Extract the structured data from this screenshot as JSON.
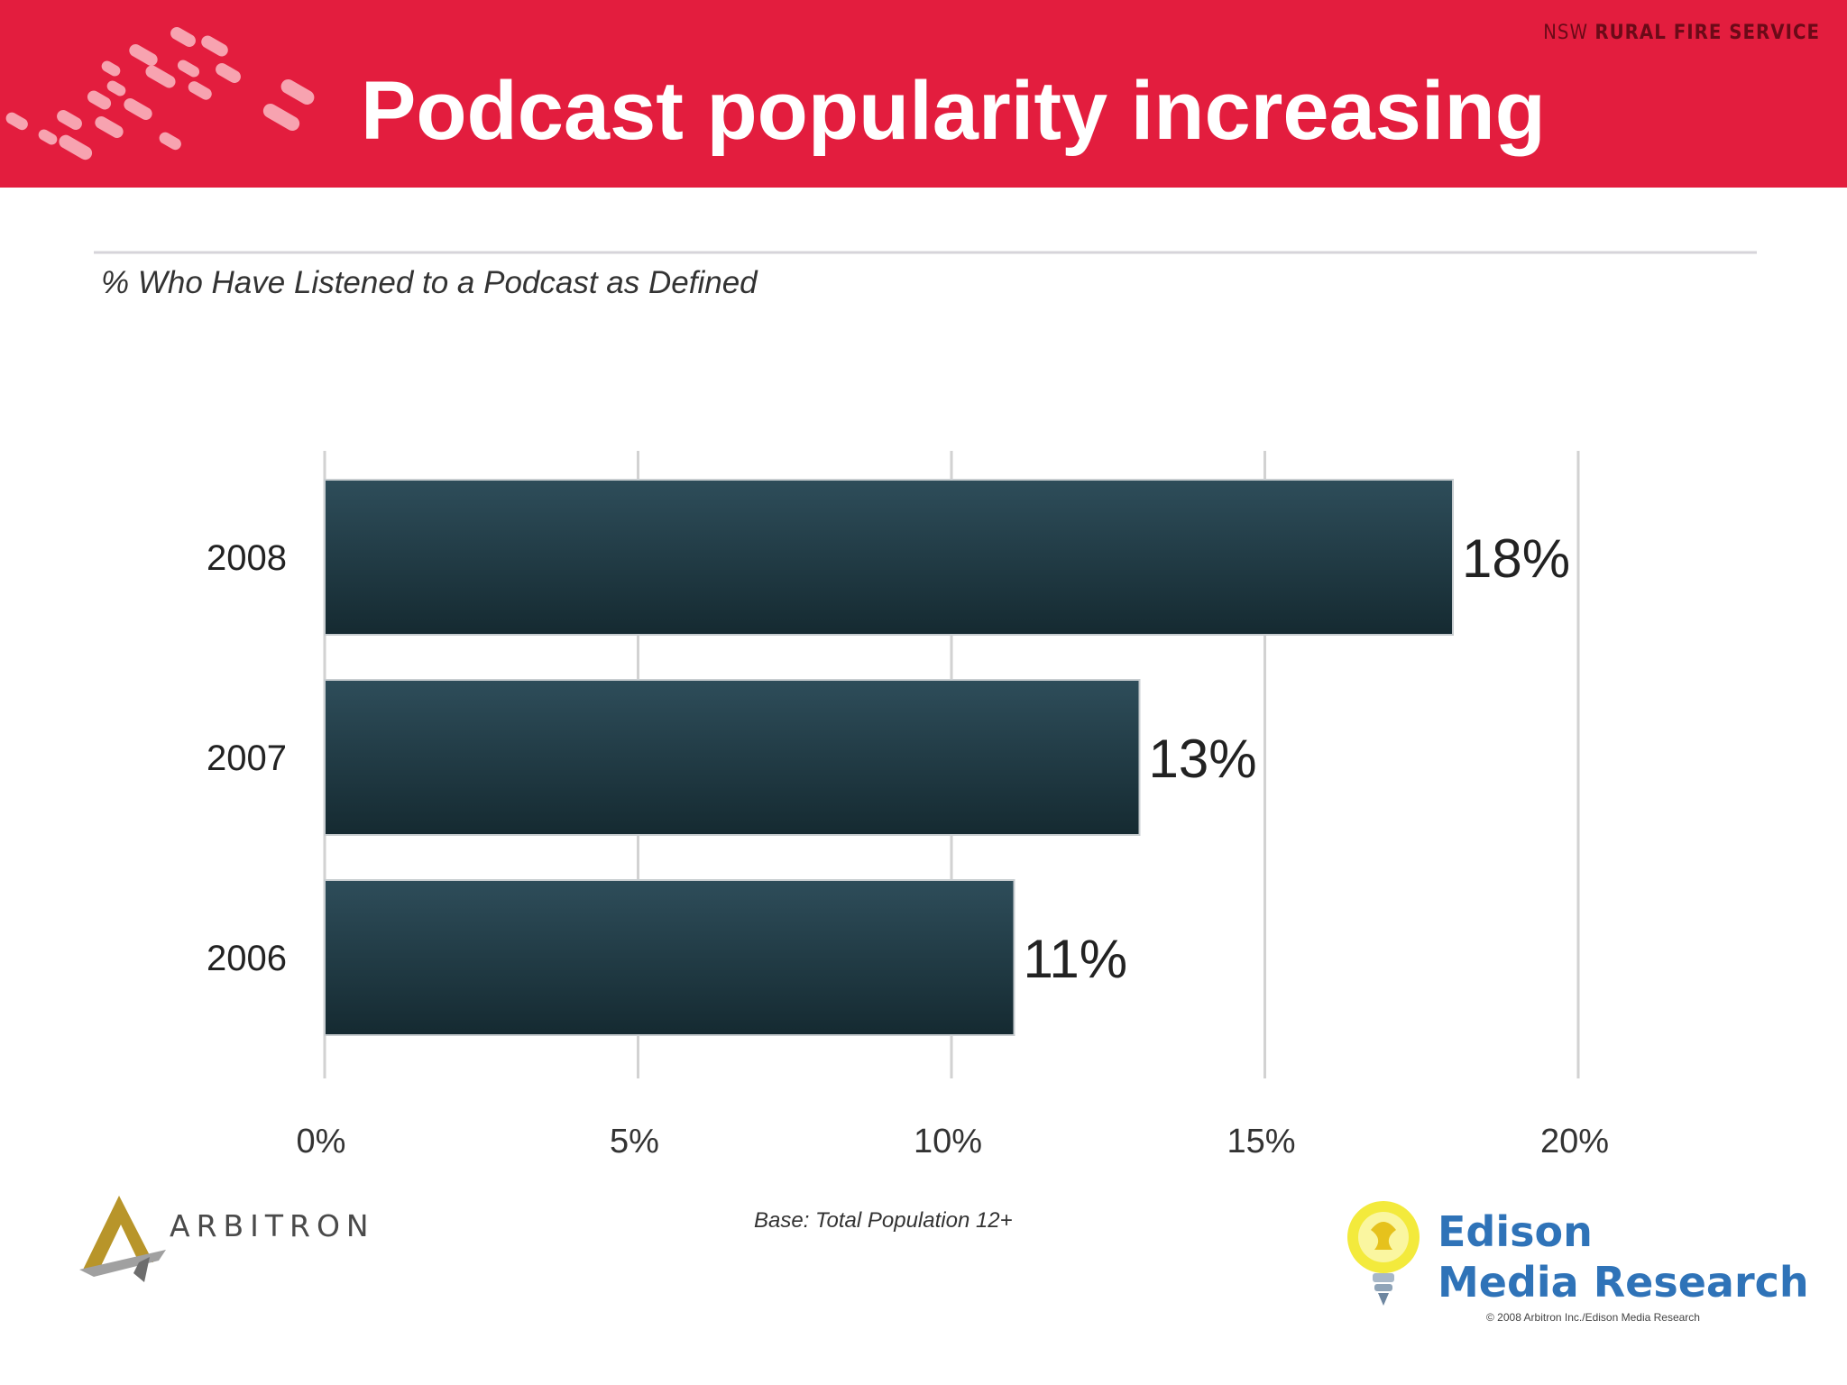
{
  "slide": {
    "title": "Podcast popularity increasing",
    "org_prefix": "NSW",
    "org_name": "RURAL FIRE SERVICE",
    "brand_color": "#e31d3e"
  },
  "chart_data": {
    "type": "bar",
    "orientation": "horizontal",
    "title": "% Who Have Listened to a Podcast as Defined",
    "categories": [
      "2008",
      "2007",
      "2006"
    ],
    "values": [
      18,
      13,
      11
    ],
    "value_labels": [
      "18%",
      "13%",
      "11%"
    ],
    "xlim": [
      0,
      20
    ],
    "x_ticks": [
      0,
      5,
      10,
      15,
      20
    ],
    "x_tick_labels": [
      "0%",
      "5%",
      "10%",
      "15%",
      "20%"
    ],
    "bar_color": "#24404b",
    "grid": "vertical",
    "note": "Base: Total Population 12+"
  },
  "footer": {
    "left_logo": "ARBITRON",
    "right_logo_line1": "Edison",
    "right_logo_line2": "Media Research",
    "copyright": "© 2008 Arbitron Inc./Edison Media Research"
  },
  "icons": {
    "banner_logo": "fire-service-dots-logo",
    "arbitron": "arbitron-triangle-logo",
    "edison": "lightbulb-logo"
  }
}
